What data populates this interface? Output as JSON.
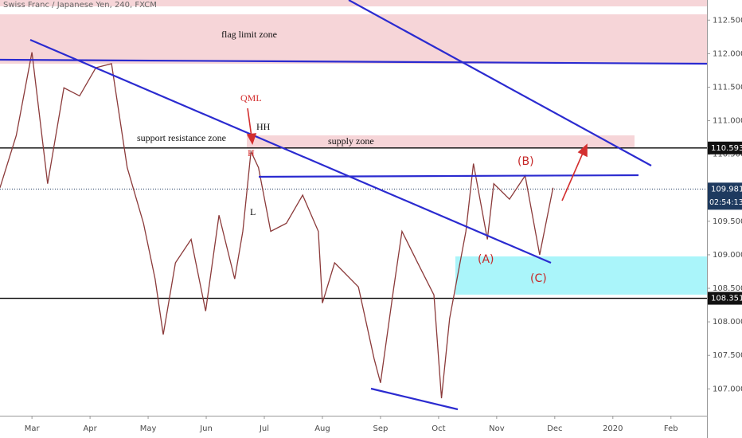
{
  "chart_data": {
    "type": "line",
    "title": "Swiss Franc / Japanese Yen, 240, FXCM",
    "annotations": [
      "flag limit zone",
      "support resistance zone",
      "supply zone",
      "QML",
      "HH",
      "H",
      "L",
      "(A)",
      "(B)",
      "(C)"
    ],
    "x": [
      -0.55,
      -0.27,
      0,
      0.27,
      0.55,
      0.82,
      1.1,
      1.37,
      1.64,
      1.92,
      2.12,
      2.26,
      2.47,
      2.74,
      2.99,
      3.22,
      3.49,
      3.63,
      3.77,
      3.9,
      4.11,
      4.38,
      4.66,
      4.93,
      5.0,
      5.21,
      5.62,
      5.89,
      6.0,
      6.23,
      6.37,
      6.64,
      6.92,
      7.05,
      7.19,
      7.47,
      7.6,
      7.84,
      7.95,
      8.22,
      8.49,
      8.74,
      8.97
    ],
    "series": [
      {
        "name": "CHFJPY",
        "color": "#8b3a3a",
        "values": [
          110.0,
          110.78,
          112.02,
          110.06,
          111.49,
          111.37,
          111.79,
          111.85,
          110.3,
          109.47,
          108.64,
          107.81,
          108.88,
          109.23,
          108.16,
          109.59,
          108.64,
          109.35,
          110.54,
          110.3,
          109.35,
          109.47,
          109.89,
          109.35,
          108.28,
          108.88,
          108.52,
          107.45,
          107.09,
          108.52,
          109.35,
          108.88,
          108.4,
          106.86,
          108.05,
          109.35,
          110.36,
          109.23,
          110.06,
          109.83,
          110.18,
          109.0,
          110.0
        ]
      }
    ],
    "xlim": [
      -0.55,
      11.62
    ],
    "xticks": [
      {
        "value": 0,
        "label": "Mar"
      },
      {
        "value": 1,
        "label": "Apr"
      },
      {
        "value": 2,
        "label": "May"
      },
      {
        "value": 3,
        "label": "Jun"
      },
      {
        "value": 4,
        "label": "Jul"
      },
      {
        "value": 5,
        "label": "Aug"
      },
      {
        "value": 6,
        "label": "Sep"
      },
      {
        "value": 7,
        "label": "Oct"
      },
      {
        "value": 8,
        "label": "Nov"
      },
      {
        "value": 9,
        "label": "Dec"
      },
      {
        "value": 10,
        "label": "2020"
      },
      {
        "value": 11,
        "label": "Feb"
      }
    ],
    "ylim": [
      106.6,
      112.8
    ],
    "yticks": [
      {
        "value": 107,
        "label": "107.000"
      },
      {
        "value": 107.5,
        "label": "107.500"
      },
      {
        "value": 108,
        "label": "108.000"
      },
      {
        "value": 108.5,
        "label": "108.500"
      },
      {
        "value": 109,
        "label": "109.000"
      },
      {
        "value": 109.5,
        "label": "109.500"
      },
      {
        "value": 110,
        "label": "110.000"
      },
      {
        "value": 110.5,
        "label": "110.500"
      },
      {
        "value": 111,
        "label": "111.000"
      },
      {
        "value": 111.5,
        "label": "111.500"
      },
      {
        "value": 112,
        "label": "112.000"
      },
      {
        "value": 112.5,
        "label": "112.500"
      }
    ],
    "levels": [
      110.593,
      108.351
    ],
    "last_price": 109.981,
    "countdown": "02:54:13"
  }
}
